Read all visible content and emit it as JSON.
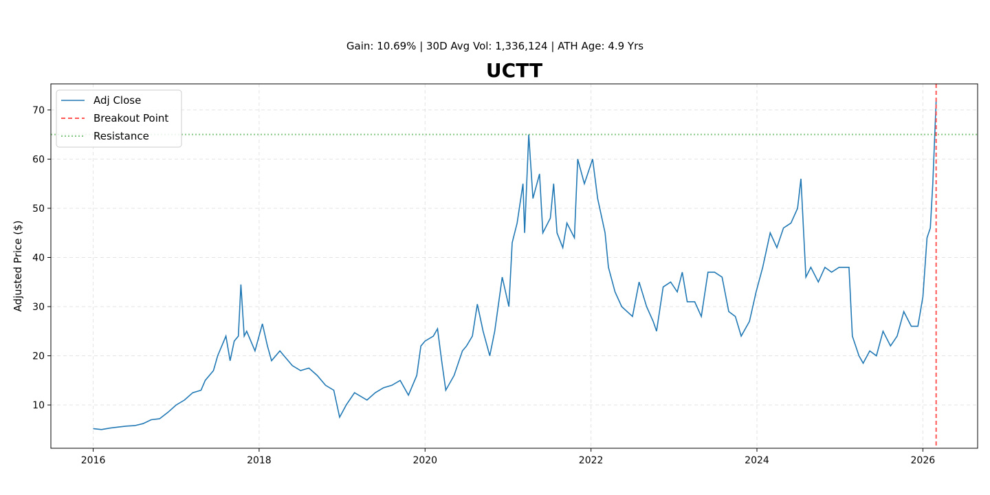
{
  "chart_data": {
    "type": "line",
    "subtitle": "Gain: 10.69% | 30D Avg Vol: 1,336,124 | ATH Age: 4.9 Yrs",
    "title": "UCTT",
    "xlabel": "",
    "ylabel": "Adjusted Price ($)",
    "xlim": [
      2015.49,
      2026.66
    ],
    "ylim": [
      1.2,
      75.3
    ],
    "xticks": [
      2016,
      2018,
      2020,
      2022,
      2024,
      2026
    ],
    "xtick_labels": [
      "2016",
      "2018",
      "2020",
      "2022",
      "2024",
      "2026"
    ],
    "yticks": [
      10,
      20,
      30,
      40,
      50,
      60,
      70
    ],
    "ytick_labels": [
      "10",
      "20",
      "30",
      "40",
      "50",
      "60",
      "70"
    ],
    "grid": true,
    "legend": {
      "placement": "top-left",
      "entries": [
        "Adj Close",
        "Breakout Point",
        "Resistance"
      ]
    },
    "series": [
      {
        "name": "Adj Close",
        "color": "#1f77b4",
        "x": [
          2016.0,
          2016.1,
          2016.2,
          2016.3,
          2016.4,
          2016.5,
          2016.6,
          2016.7,
          2016.8,
          2016.9,
          2017.0,
          2017.1,
          2017.2,
          2017.3,
          2017.35,
          2017.45,
          2017.5,
          2017.55,
          2017.6,
          2017.65,
          2017.7,
          2017.75,
          2017.78,
          2017.82,
          2017.85,
          2017.95,
          2018.04,
          2018.1,
          2018.15,
          2018.25,
          2018.3,
          2018.4,
          2018.5,
          2018.6,
          2018.7,
          2018.8,
          2018.9,
          2018.97,
          2019.05,
          2019.15,
          2019.3,
          2019.4,
          2019.5,
          2019.6,
          2019.7,
          2019.8,
          2019.9,
          2019.95,
          2020.0,
          2020.1,
          2020.15,
          2020.2,
          2020.25,
          2020.35,
          2020.45,
          2020.5,
          2020.57,
          2020.63,
          2020.7,
          2020.78,
          2020.84,
          2020.93,
          2021.01,
          2021.05,
          2021.11,
          2021.18,
          2021.2,
          2021.25,
          2021.3,
          2021.38,
          2021.42,
          2021.51,
          2021.55,
          2021.59,
          2021.66,
          2021.71,
          2021.8,
          2021.84,
          2021.92,
          2022.02,
          2022.08,
          2022.17,
          2022.21,
          2022.29,
          2022.37,
          2022.5,
          2022.58,
          2022.67,
          2022.75,
          2022.79,
          2022.87,
          2022.96,
          2023.04,
          2023.1,
          2023.16,
          2023.25,
          2023.33,
          2023.41,
          2023.49,
          2023.58,
          2023.66,
          2023.74,
          2023.81,
          2023.91,
          2023.99,
          2024.07,
          2024.16,
          2024.24,
          2024.32,
          2024.41,
          2024.49,
          2024.53,
          2024.59,
          2024.65,
          2024.74,
          2024.82,
          2024.9,
          2024.99,
          2025.11,
          2025.15,
          2025.23,
          2025.28,
          2025.36,
          2025.44,
          2025.52,
          2025.61,
          2025.69,
          2025.77,
          2025.86,
          2025.94,
          2026.0,
          2026.05,
          2026.09,
          2026.12,
          2026.16
        ],
        "y": [
          5.2,
          5.0,
          5.3,
          5.5,
          5.7,
          5.8,
          6.2,
          7.0,
          7.2,
          8.5,
          10,
          11,
          12.5,
          13,
          15,
          17,
          20,
          22,
          24,
          19,
          23,
          24,
          34.5,
          24,
          25,
          21,
          26.5,
          22,
          19,
          21,
          20,
          18,
          17,
          17.5,
          16,
          14,
          13,
          7.5,
          10,
          12.5,
          11,
          12.5,
          13.5,
          14,
          15,
          12,
          16,
          22,
          23,
          24,
          25.5,
          19,
          13,
          16,
          21,
          22,
          24,
          30.5,
          25,
          20,
          25,
          36,
          30,
          43,
          47,
          55,
          45,
          65,
          52,
          57,
          45,
          48,
          55,
          45,
          42,
          47,
          44,
          60,
          55,
          60,
          52,
          45,
          38,
          33,
          30,
          28,
          35,
          30,
          27,
          25,
          34,
          35,
          33,
          37,
          31,
          31,
          28,
          37,
          37,
          36,
          29,
          28,
          24,
          27,
          33,
          38,
          45,
          42,
          46,
          47,
          50,
          56,
          36,
          38,
          35,
          38,
          37,
          38,
          38,
          24,
          20,
          18.5,
          21,
          20,
          25,
          22,
          24,
          29,
          26,
          26,
          32,
          44,
          46,
          55,
          72
        ]
      }
    ],
    "annotations": [
      {
        "name": "Breakout Point",
        "type": "vline",
        "x": 2026.16,
        "color": "#ff5555",
        "style": "dashed"
      },
      {
        "name": "Resistance",
        "type": "hline",
        "y": 65.0,
        "color": "#2ca02c",
        "style": "dotted"
      }
    ]
  }
}
